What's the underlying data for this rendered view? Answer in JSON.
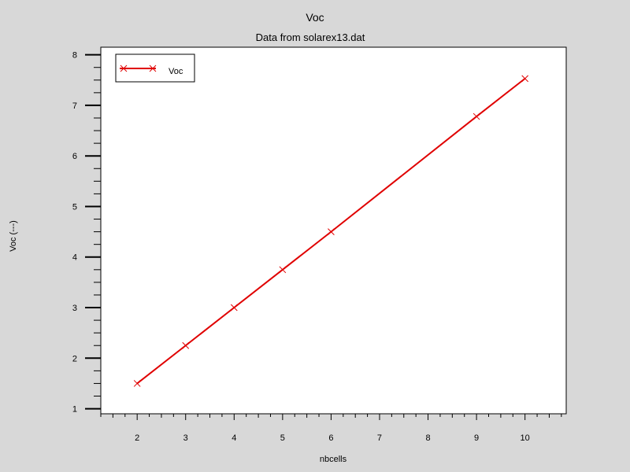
{
  "chart_data": {
    "type": "line",
    "title": "Voc",
    "subtitle": "Data from solarex13.dat",
    "xlabel": "nbcells",
    "ylabel": "Voc (---)",
    "xlim": [
      1.25,
      10.85
    ],
    "ylim": [
      0.9,
      8.15
    ],
    "xticks": [
      2,
      3,
      4,
      5,
      6,
      7,
      8,
      9,
      10
    ],
    "yticks": [
      1,
      2,
      3,
      4,
      5,
      6,
      7,
      8
    ],
    "legend_position": "top-left",
    "grid": false,
    "series": [
      {
        "name": "Voc",
        "color": "#e00000",
        "marker": "x",
        "x": [
          2,
          3,
          4,
          5,
          6,
          9,
          10
        ],
        "y": [
          1.5,
          2.25,
          3.0,
          3.75,
          4.5,
          6.78,
          7.53
        ]
      }
    ]
  }
}
